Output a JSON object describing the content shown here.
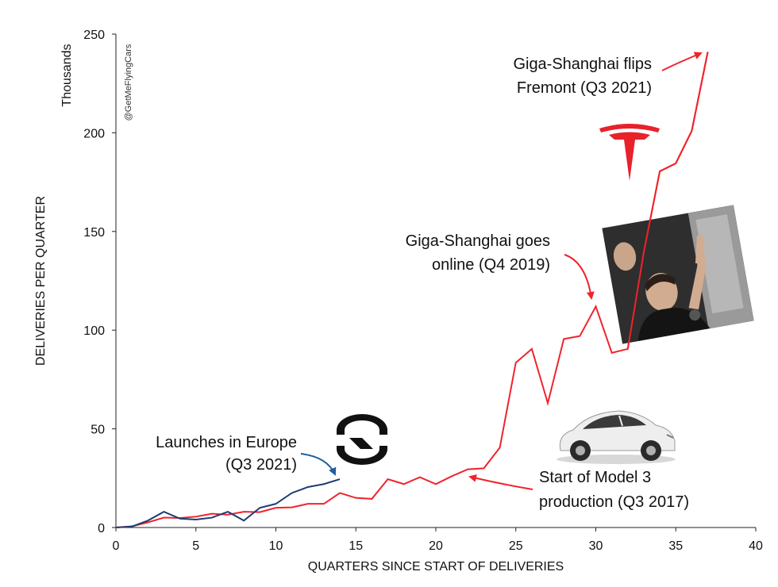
{
  "chart_data": {
    "type": "line",
    "xlabel": "QUARTERS SINCE START OF DELIVERIES",
    "ylabel": "DELIVERIES PER QUARTER",
    "yunit": "Thousands",
    "watermark": "@GetMeFlyingCars",
    "xlim": [
      0,
      40
    ],
    "ylim": [
      0,
      250
    ],
    "xticks": [
      0,
      5,
      10,
      15,
      20,
      25,
      30,
      35,
      40
    ],
    "yticks": [
      0,
      50,
      100,
      150,
      200,
      250
    ],
    "grid": false,
    "series": [
      {
        "color": "#f0232b",
        "x": [
          0,
          1,
          2,
          3,
          4,
          5,
          6,
          7,
          8,
          9,
          10,
          11,
          12,
          13,
          14,
          15,
          16,
          17,
          18,
          19,
          20,
          21,
          22,
          23,
          24,
          25,
          26,
          27,
          28,
          29,
          30,
          31,
          32,
          33,
          34,
          35,
          36,
          37
        ],
        "values": [
          0,
          0.6,
          2.6,
          5,
          4.8,
          5.5,
          7,
          6.5,
          8,
          7.8,
          10,
          10.2,
          12,
          12,
          17.5,
          15,
          14.5,
          24.5,
          22,
          25.5,
          22,
          26,
          29.5,
          30,
          40.5,
          83.5,
          90.5,
          63,
          95.5,
          97,
          112,
          88.5,
          90.5,
          139.5,
          180.5,
          184.5,
          201,
          241
        ]
      },
      {
        "color": "#1f3b73",
        "x": [
          0,
          1,
          2,
          3,
          4,
          5,
          6,
          7,
          8,
          9,
          10,
          11,
          12,
          13,
          14
        ],
        "values": [
          0,
          0.5,
          3.5,
          8,
          4.5,
          4,
          5,
          8,
          3.5,
          10,
          12,
          17.5,
          20.5,
          22,
          24.5
        ]
      }
    ],
    "annotations": [
      {
        "id": "europe",
        "line1": "Launches in Europe",
        "line2": "(Q3 2021)"
      },
      {
        "id": "model3",
        "line1": "Start of Model 3",
        "line2": "production (Q3 2017)"
      },
      {
        "id": "shanghai",
        "line1": "Giga-Shanghai goes",
        "line2": "online (Q4 2019)"
      },
      {
        "id": "fremont",
        "line1": "Giga-Shanghai flips",
        "line2": "Fremont (Q3 2021)"
      }
    ]
  }
}
